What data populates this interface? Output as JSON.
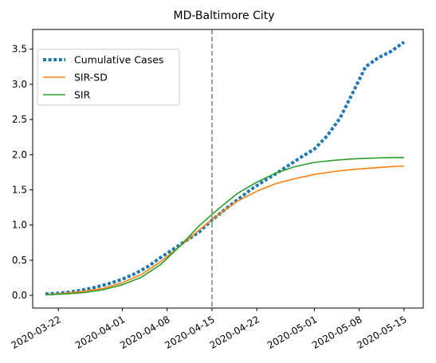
{
  "chart_data": {
    "type": "line",
    "title": "MD-Baltimore City",
    "xlabel": "",
    "ylabel": "",
    "xlim": [
      "2020-03-18",
      "2020-05-18"
    ],
    "ylim": [
      -0.18,
      3.78
    ],
    "x_ticks": [
      "2020-03-22",
      "2020-04-01",
      "2020-04-08",
      "2020-04-15",
      "2020-04-22",
      "2020-05-01",
      "2020-05-08",
      "2020-05-15"
    ],
    "y_ticks": [
      "0.0",
      "0.5",
      "1.0",
      "1.5",
      "2.0",
      "2.5",
      "3.0",
      "3.5"
    ],
    "y_tick_values": [
      0,
      0.5,
      1.0,
      1.5,
      2.0,
      2.5,
      3.0,
      3.5
    ],
    "vline_date": "2020-04-15",
    "grid": false,
    "legend_position": "top-left",
    "colors": {
      "cumulative": "#1f77b4",
      "sirsd": "#ff7f0e",
      "sir": "#2ca02c",
      "vline": "#7f7f7f"
    },
    "series": [
      {
        "name": "Cumulative Cases",
        "style": "dotted",
        "x": [
          "2020-03-20",
          "2020-03-22",
          "2020-03-24",
          "2020-03-26",
          "2020-03-28",
          "2020-03-30",
          "2020-04-01",
          "2020-04-03",
          "2020-04-05",
          "2020-04-07",
          "2020-04-09",
          "2020-04-11",
          "2020-04-13",
          "2020-04-15",
          "2020-04-17",
          "2020-04-19",
          "2020-04-21",
          "2020-04-23",
          "2020-04-25",
          "2020-04-27",
          "2020-04-29",
          "2020-05-01",
          "2020-05-03",
          "2020-05-05",
          "2020-05-07",
          "2020-05-09",
          "2020-05-11",
          "2020-05-13",
          "2020-05-15"
        ],
        "y": [
          0.02,
          0.03,
          0.05,
          0.08,
          0.12,
          0.17,
          0.23,
          0.31,
          0.41,
          0.54,
          0.66,
          0.78,
          0.9,
          1.07,
          1.22,
          1.36,
          1.5,
          1.62,
          1.73,
          1.85,
          1.97,
          2.08,
          2.27,
          2.52,
          2.88,
          3.25,
          3.38,
          3.47,
          3.6
        ]
      },
      {
        "name": "SIR-SD",
        "style": "solid",
        "x": [
          "2020-03-20",
          "2020-03-23",
          "2020-03-26",
          "2020-03-29",
          "2020-04-01",
          "2020-04-04",
          "2020-04-07",
          "2020-04-10",
          "2020-04-13",
          "2020-04-16",
          "2020-04-19",
          "2020-04-22",
          "2020-04-25",
          "2020-04-28",
          "2020-05-01",
          "2020-05-04",
          "2020-05-07",
          "2020-05-10",
          "2020-05-13",
          "2020-05-15"
        ],
        "y": [
          0.01,
          0.03,
          0.06,
          0.1,
          0.18,
          0.3,
          0.48,
          0.7,
          0.93,
          1.15,
          1.34,
          1.48,
          1.59,
          1.66,
          1.72,
          1.76,
          1.79,
          1.81,
          1.83,
          1.84
        ]
      },
      {
        "name": "SIR",
        "style": "solid",
        "x": [
          "2020-03-20",
          "2020-03-23",
          "2020-03-26",
          "2020-03-29",
          "2020-04-01",
          "2020-04-04",
          "2020-04-07",
          "2020-04-10",
          "2020-04-13",
          "2020-04-16",
          "2020-04-19",
          "2020-04-22",
          "2020-04-25",
          "2020-04-28",
          "2020-05-01",
          "2020-05-04",
          "2020-05-07",
          "2020-05-10",
          "2020-05-13",
          "2020-05-15"
        ],
        "y": [
          0.01,
          0.02,
          0.04,
          0.08,
          0.15,
          0.26,
          0.44,
          0.7,
          0.99,
          1.23,
          1.45,
          1.61,
          1.74,
          1.83,
          1.89,
          1.92,
          1.94,
          1.95,
          1.96,
          1.96
        ]
      }
    ]
  }
}
